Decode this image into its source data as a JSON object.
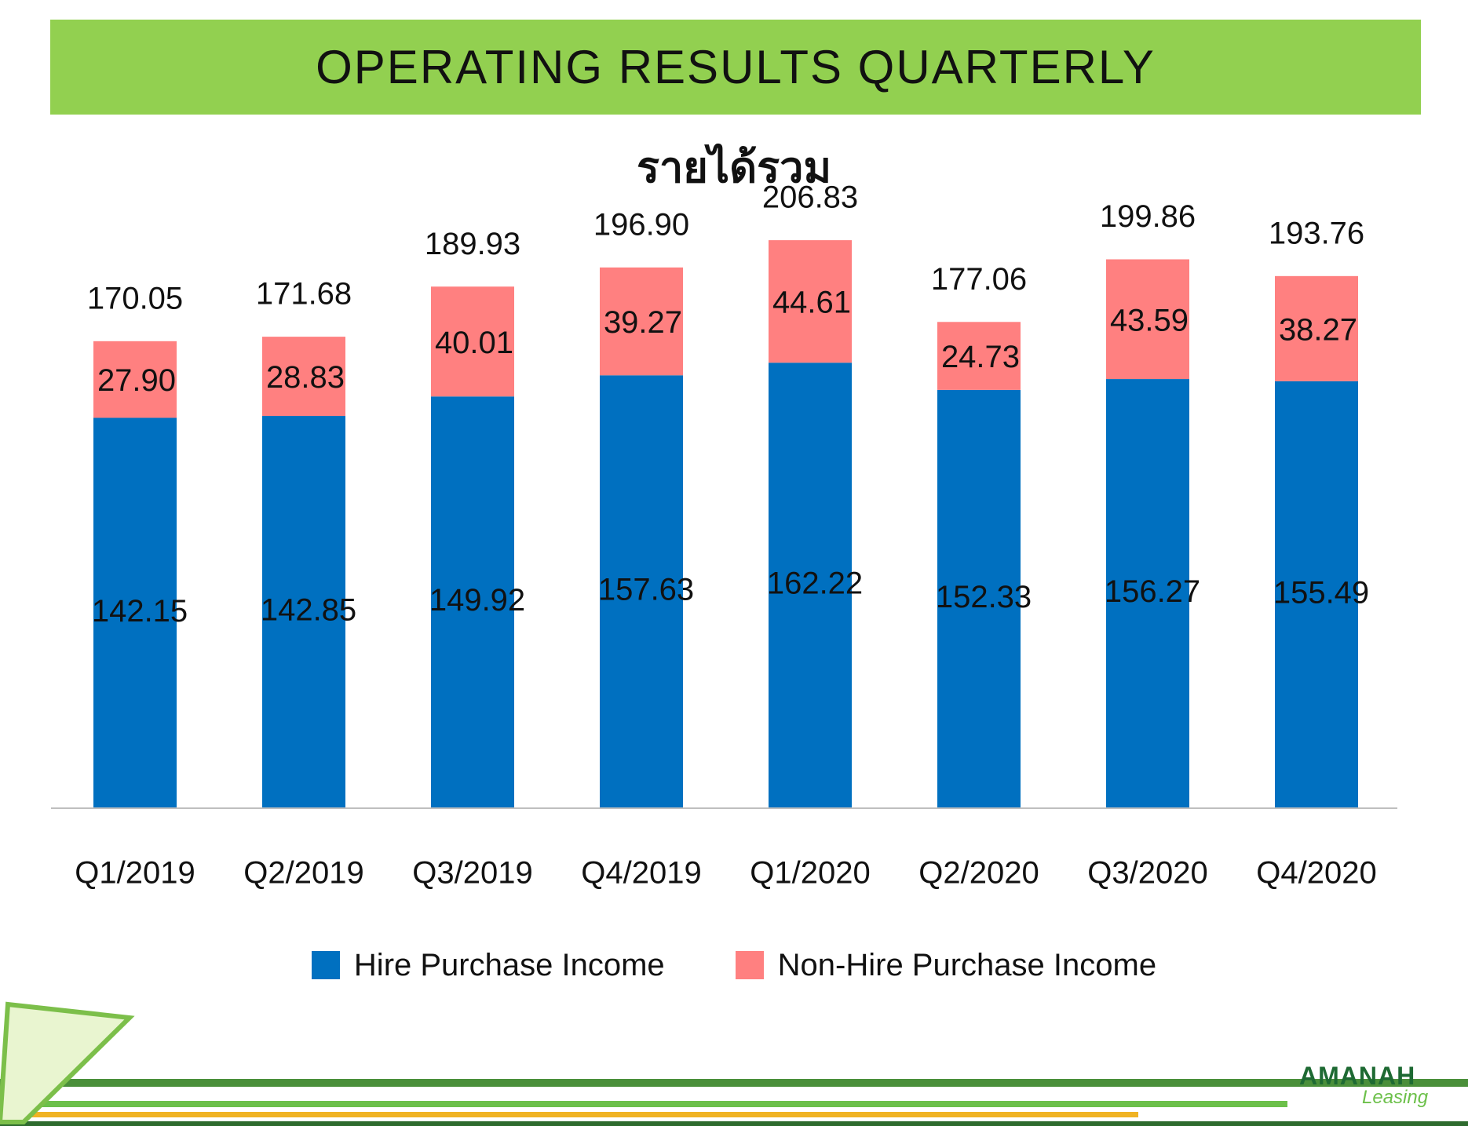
{
  "banner": {
    "title": "OPERATING RESULTS QUARTERLY",
    "color": "#92d050"
  },
  "chart_data": {
    "type": "bar",
    "stacked": true,
    "title": "รายได้รวม",
    "categories": [
      "Q1/2019",
      "Q2/2019",
      "Q3/2019",
      "Q4/2019",
      "Q1/2020",
      "Q2/2020",
      "Q3/2020",
      "Q4/2020"
    ],
    "series": [
      {
        "name": "Hire Purchase Income",
        "color": "#0070c0",
        "values": [
          142.15,
          142.85,
          149.92,
          157.63,
          162.22,
          152.33,
          156.27,
          155.49
        ],
        "value_labels": [
          "142.15",
          "142.85",
          "149.92",
          "157.63",
          "162.22",
          "152.33",
          "156.27",
          "155.49"
        ]
      },
      {
        "name": "Non-Hire Purchase Income",
        "color": "#ff8080",
        "values": [
          27.9,
          28.83,
          40.01,
          39.27,
          44.61,
          24.73,
          43.59,
          38.27
        ],
        "value_labels": [
          "27.90",
          "28.83",
          "40.01",
          "39.27",
          "44.61",
          "24.73",
          "43.59",
          "38.27"
        ]
      }
    ],
    "totals": [
      170.05,
      171.68,
      189.93,
      196.9,
      206.83,
      177.06,
      199.86,
      193.76
    ],
    "total_labels": [
      "170.05",
      "171.68",
      "189.93",
      "196.90",
      "206.83",
      "177.06",
      "199.86",
      "193.76"
    ],
    "ylim": [
      0,
      220
    ],
    "grid": false,
    "legend_position": "bottom"
  },
  "logo": {
    "name": "AMANAH",
    "sub": "Leasing"
  }
}
